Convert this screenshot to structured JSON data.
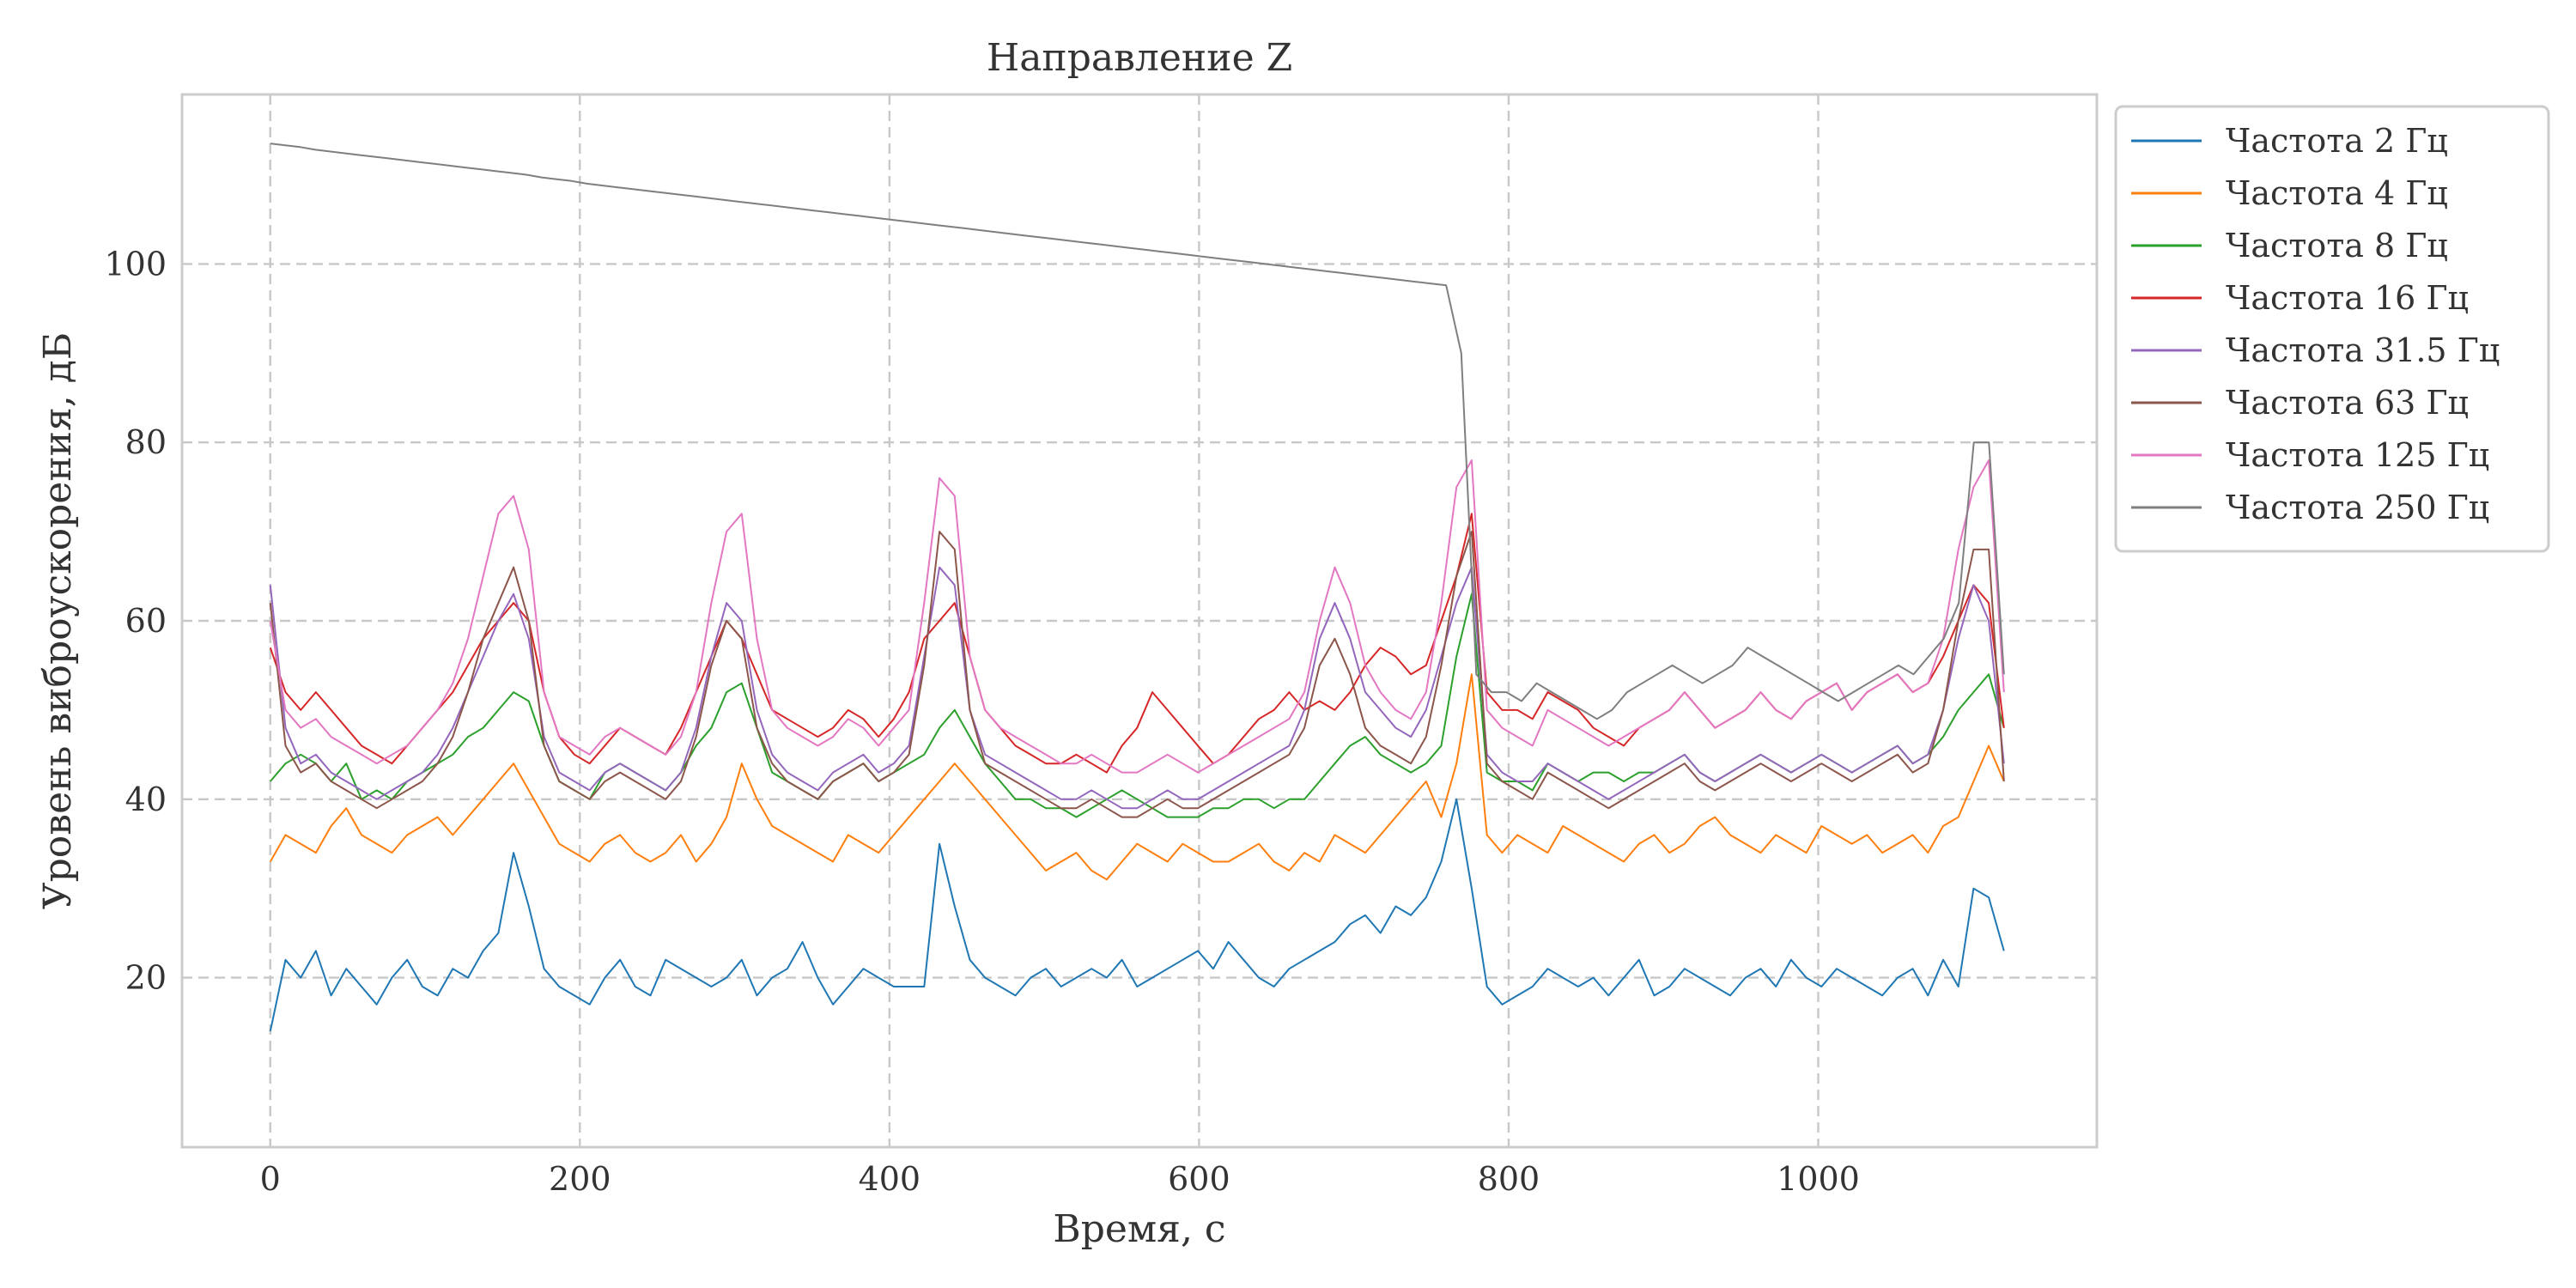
{
  "chart_data": {
    "type": "line",
    "title": "Направление Z",
    "xlabel": "Время,  с",
    "ylabel": "Уровень виброускорения,  дБ",
    "xlim": [
      -57,
      1180
    ],
    "ylim": [
      1,
      119
    ],
    "xticks": [
      0,
      200,
      400,
      600,
      800,
      1000
    ],
    "yticks": [
      20,
      40,
      60,
      80,
      100
    ],
    "xtick_labels": [
      "0",
      "200",
      "400",
      "600",
      "800",
      "1000"
    ],
    "ytick_labels": [
      "20",
      "40",
      "60",
      "80",
      "100"
    ],
    "grid": true,
    "legend_position": "outside-top-right",
    "x_end": 1120,
    "series": [
      {
        "name": "Частота 2 Гц",
        "color": "#1f77b4",
        "values": [
          14,
          22,
          20,
          23,
          18,
          21,
          19,
          17,
          20,
          22,
          19,
          18,
          21,
          20,
          23,
          25,
          34,
          28,
          21,
          19,
          18,
          17,
          20,
          22,
          19,
          18,
          22,
          21,
          20,
          19,
          20,
          22,
          18,
          20,
          21,
          24,
          20,
          17,
          19,
          21,
          20,
          19,
          19,
          19,
          35,
          28,
          22,
          20,
          19,
          18,
          20,
          21,
          19,
          20,
          21,
          20,
          22,
          19,
          20,
          21,
          22,
          23,
          21,
          24,
          22,
          20,
          19,
          21,
          22,
          23,
          24,
          26,
          27,
          25,
          28,
          27,
          29,
          33,
          40,
          30,
          19,
          17,
          18,
          19,
          21,
          20,
          19,
          20,
          18,
          20,
          22,
          18,
          19,
          21,
          20,
          19,
          18,
          20,
          21,
          19,
          22,
          20,
          19,
          21,
          20,
          19,
          18,
          20,
          21,
          18,
          22,
          19,
          30,
          29,
          23
        ]
      },
      {
        "name": "Частота 4 Гц",
        "color": "#ff7f0e",
        "values": [
          33,
          36,
          35,
          34,
          37,
          39,
          36,
          35,
          34,
          36,
          37,
          38,
          36,
          38,
          40,
          42,
          44,
          41,
          38,
          35,
          34,
          33,
          35,
          36,
          34,
          33,
          34,
          36,
          33,
          35,
          38,
          44,
          40,
          37,
          36,
          35,
          34,
          33,
          36,
          35,
          34,
          36,
          38,
          40,
          42,
          44,
          42,
          40,
          38,
          36,
          34,
          32,
          33,
          34,
          32,
          31,
          33,
          35,
          34,
          33,
          35,
          34,
          33,
          33,
          34,
          35,
          33,
          32,
          34,
          33,
          36,
          35,
          34,
          36,
          38,
          40,
          42,
          38,
          44,
          54,
          36,
          34,
          36,
          35,
          34,
          37,
          36,
          35,
          34,
          33,
          35,
          36,
          34,
          35,
          37,
          38,
          36,
          35,
          34,
          36,
          35,
          34,
          37,
          36,
          35,
          36,
          34,
          35,
          36,
          34,
          37,
          38,
          42,
          46,
          42
        ]
      },
      {
        "name": "Частота 8 Гц",
        "color": "#2ca02c",
        "values": [
          42,
          44,
          45,
          44,
          42,
          44,
          40,
          41,
          40,
          42,
          43,
          44,
          45,
          47,
          48,
          50,
          52,
          51,
          46,
          42,
          41,
          40,
          43,
          44,
          43,
          42,
          41,
          43,
          46,
          48,
          52,
          53,
          48,
          43,
          42,
          41,
          40,
          42,
          43,
          44,
          42,
          43,
          44,
          45,
          48,
          50,
          47,
          44,
          42,
          40,
          40,
          39,
          39,
          38,
          39,
          40,
          41,
          40,
          39,
          38,
          38,
          38,
          39,
          39,
          40,
          40,
          39,
          40,
          40,
          42,
          44,
          46,
          47,
          45,
          44,
          43,
          44,
          46,
          56,
          63,
          43,
          42,
          42,
          41,
          44,
          43,
          42,
          43,
          43,
          42,
          43,
          43,
          44,
          45,
          43,
          42,
          43,
          44,
          45,
          44,
          43,
          44,
          45,
          44,
          43,
          44,
          45,
          46,
          44,
          45,
          47,
          50,
          52,
          54,
          48
        ]
      },
      {
        "name": "Частота 16 Гц",
        "color": "#d62728",
        "values": [
          57,
          52,
          50,
          52,
          50,
          48,
          46,
          45,
          44,
          46,
          48,
          50,
          52,
          55,
          58,
          60,
          62,
          60,
          52,
          47,
          45,
          44,
          46,
          48,
          47,
          46,
          45,
          48,
          52,
          56,
          60,
          58,
          54,
          50,
          49,
          48,
          47,
          48,
          50,
          49,
          47,
          49,
          52,
          58,
          60,
          62,
          56,
          50,
          48,
          46,
          45,
          44,
          44,
          45,
          44,
          43,
          46,
          48,
          52,
          50,
          48,
          46,
          44,
          45,
          47,
          49,
          50,
          52,
          50,
          51,
          50,
          52,
          55,
          57,
          56,
          54,
          55,
          60,
          65,
          72,
          52,
          50,
          50,
          49,
          52,
          51,
          50,
          48,
          47,
          46,
          48,
          49,
          50,
          52,
          50,
          48,
          49,
          50,
          52,
          50,
          49,
          51,
          52,
          53,
          50,
          52,
          53,
          54,
          52,
          53,
          56,
          60,
          64,
          62,
          48
        ]
      },
      {
        "name": "Частота 31.5 Гц",
        "color": "#9467bd",
        "values": [
          64,
          48,
          44,
          45,
          43,
          42,
          41,
          40,
          41,
          42,
          43,
          45,
          48,
          52,
          56,
          60,
          63,
          58,
          47,
          43,
          42,
          41,
          43,
          44,
          43,
          42,
          41,
          43,
          48,
          56,
          62,
          60,
          50,
          45,
          43,
          42,
          41,
          43,
          44,
          45,
          43,
          44,
          46,
          56,
          66,
          64,
          50,
          45,
          44,
          43,
          42,
          41,
          40,
          40,
          41,
          40,
          39,
          39,
          40,
          41,
          40,
          40,
          41,
          42,
          43,
          44,
          45,
          46,
          50,
          58,
          62,
          58,
          52,
          50,
          48,
          47,
          50,
          56,
          62,
          66,
          45,
          43,
          42,
          42,
          44,
          43,
          42,
          41,
          40,
          41,
          42,
          43,
          44,
          45,
          43,
          42,
          43,
          44,
          45,
          44,
          43,
          44,
          45,
          44,
          43,
          44,
          45,
          46,
          44,
          45,
          50,
          58,
          64,
          60,
          44
        ]
      },
      {
        "name": "Частота 63 Гц",
        "color": "#8c564b",
        "values": [
          62,
          46,
          43,
          44,
          42,
          41,
          40,
          39,
          40,
          41,
          42,
          44,
          47,
          52,
          58,
          62,
          66,
          60,
          46,
          42,
          41,
          40,
          42,
          43,
          42,
          41,
          40,
          42,
          47,
          55,
          60,
          58,
          48,
          44,
          42,
          41,
          40,
          42,
          43,
          44,
          42,
          43,
          45,
          55,
          70,
          68,
          50,
          44,
          43,
          42,
          41,
          40,
          39,
          39,
          40,
          39,
          38,
          38,
          39,
          40,
          39,
          39,
          40,
          41,
          42,
          43,
          44,
          45,
          48,
          55,
          58,
          54,
          48,
          46,
          45,
          44,
          47,
          55,
          65,
          70,
          44,
          42,
          41,
          40,
          43,
          42,
          41,
          40,
          39,
          40,
          41,
          42,
          43,
          44,
          42,
          41,
          42,
          43,
          44,
          43,
          42,
          43,
          44,
          43,
          42,
          43,
          44,
          45,
          43,
          44,
          50,
          60,
          68,
          68,
          42
        ]
      },
      {
        "name": "Частота 125 Гц",
        "color": "#e377c2",
        "values": [
          60,
          50,
          48,
          49,
          47,
          46,
          45,
          44,
          45,
          46,
          48,
          50,
          53,
          58,
          65,
          72,
          74,
          68,
          52,
          47,
          46,
          45,
          47,
          48,
          47,
          46,
          45,
          47,
          52,
          62,
          70,
          72,
          58,
          50,
          48,
          47,
          46,
          47,
          49,
          48,
          46,
          48,
          50,
          62,
          76,
          74,
          56,
          50,
          48,
          47,
          46,
          45,
          44,
          44,
          45,
          44,
          43,
          43,
          44,
          45,
          44,
          43,
          44,
          45,
          46,
          47,
          48,
          49,
          52,
          60,
          66,
          62,
          55,
          52,
          50,
          49,
          52,
          62,
          75,
          78,
          50,
          48,
          47,
          46,
          50,
          49,
          48,
          47,
          46,
          47,
          48,
          49,
          50,
          52,
          50,
          48,
          49,
          50,
          52,
          50,
          49,
          51,
          52,
          53,
          50,
          52,
          53,
          54,
          52,
          53,
          58,
          68,
          75,
          78,
          52
        ]
      },
      {
        "name": "Частота 250 Гц",
        "color": "#7f7f7f",
        "values": [
          113.5,
          113.3,
          113.1,
          112.8,
          112.6,
          112.4,
          112.2,
          112.0,
          111.8,
          111.6,
          111.4,
          111.2,
          111.0,
          110.8,
          110.6,
          110.4,
          110.2,
          110.0,
          109.7,
          109.5,
          109.3,
          109.0,
          108.8,
          108.6,
          108.4,
          108.2,
          108.0,
          107.8,
          107.6,
          107.4,
          107.2,
          107.0,
          106.8,
          106.6,
          106.4,
          106.2,
          106.0,
          105.8,
          105.6,
          105.4,
          105.2,
          105.0,
          104.8,
          104.6,
          104.4,
          104.2,
          104.0,
          103.8,
          103.6,
          103.4,
          103.2,
          103.0,
          102.8,
          102.6,
          102.4,
          102.2,
          102.0,
          101.8,
          101.6,
          101.4,
          101.2,
          101.0,
          100.8,
          100.6,
          100.4,
          100.2,
          100.0,
          99.8,
          99.6,
          99.4,
          99.2,
          99.0,
          98.8,
          98.6,
          98.4,
          98.2,
          98.0,
          97.8,
          97.6,
          90,
          54,
          52,
          52,
          51,
          53,
          52,
          51,
          50,
          49,
          50,
          52,
          53,
          54,
          55,
          54,
          53,
          54,
          55,
          57,
          56,
          55,
          54,
          53,
          52,
          51,
          52,
          53,
          54,
          55,
          54,
          56,
          58,
          62,
          80,
          80,
          54
        ]
      }
    ]
  }
}
